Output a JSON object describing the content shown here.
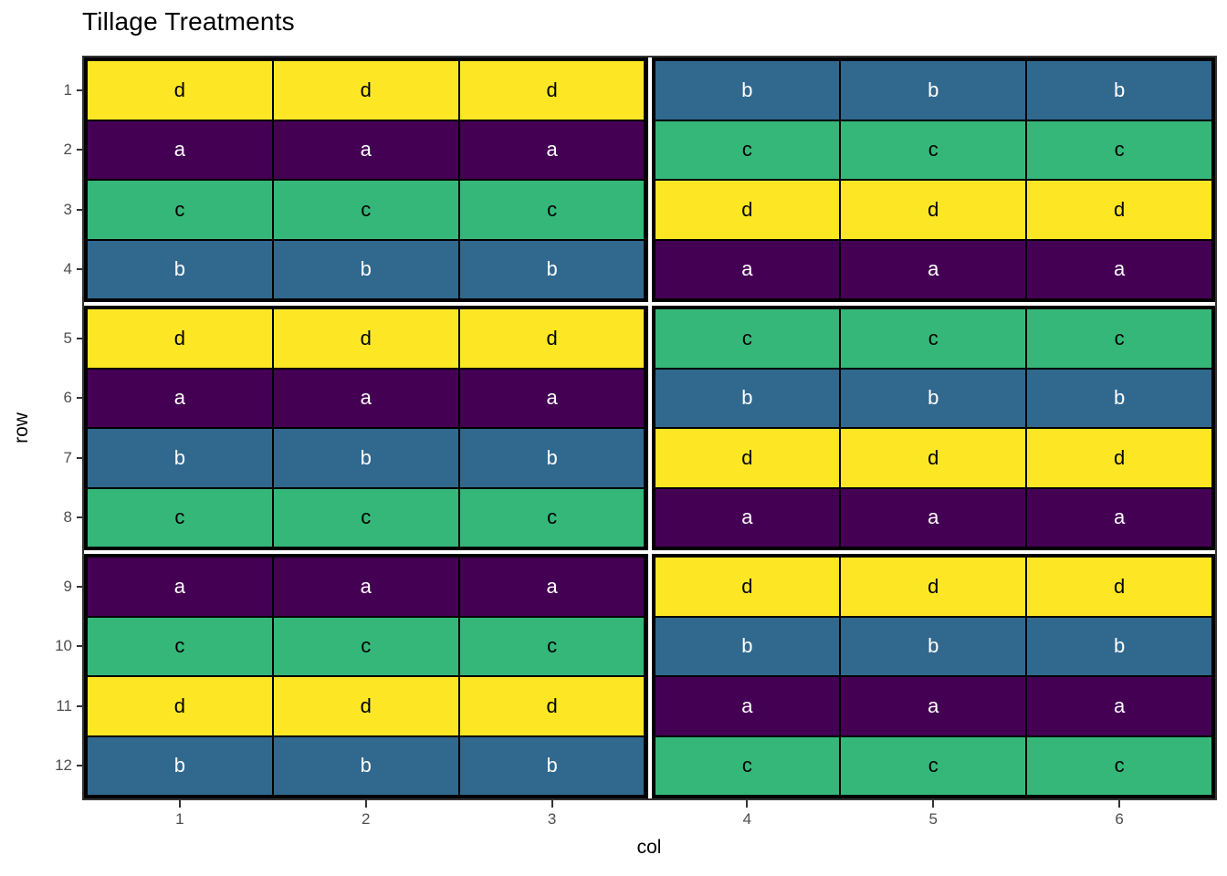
{
  "title": "Tillage Treatments",
  "axes": {
    "x_label": "col",
    "y_label": "row",
    "x_ticks": [
      "1",
      "2",
      "3",
      "4",
      "5",
      "6"
    ],
    "y_ticks": [
      "1",
      "2",
      "3",
      "4",
      "5",
      "6",
      "7",
      "8",
      "9",
      "10",
      "11",
      "12"
    ]
  },
  "palette": {
    "a": "#440154",
    "b": "#31688E",
    "c": "#35B779",
    "d": "#FDE725"
  },
  "text_colors": {
    "a": "#FFFFFF",
    "b": "#FFFFFF",
    "c": "#000000",
    "d": "#000000"
  },
  "panel": {
    "background": "#FFFFFF",
    "block_border_color": "#000000",
    "outer_border_color": "#333333",
    "tick_color": "#333333",
    "tick_label_color": "#4D4D4D"
  },
  "chart_data": {
    "type": "heatmap",
    "title": "Tillage Treatments",
    "xlabel": "col",
    "ylabel": "row",
    "x": [
      1,
      2,
      3,
      4,
      5,
      6
    ],
    "y": [
      1,
      2,
      3,
      4,
      5,
      6,
      7,
      8,
      9,
      10,
      11,
      12
    ],
    "legend": false,
    "treatments": [
      "a",
      "b",
      "c",
      "d"
    ],
    "grid": [
      [
        "d",
        "d",
        "d",
        "b",
        "b",
        "b"
      ],
      [
        "a",
        "a",
        "a",
        "c",
        "c",
        "c"
      ],
      [
        "c",
        "c",
        "c",
        "d",
        "d",
        "d"
      ],
      [
        "b",
        "b",
        "b",
        "a",
        "a",
        "a"
      ],
      [
        "d",
        "d",
        "d",
        "c",
        "c",
        "c"
      ],
      [
        "a",
        "a",
        "a",
        "b",
        "b",
        "b"
      ],
      [
        "b",
        "b",
        "b",
        "d",
        "d",
        "d"
      ],
      [
        "c",
        "c",
        "c",
        "a",
        "a",
        "a"
      ],
      [
        "a",
        "a",
        "a",
        "d",
        "d",
        "d"
      ],
      [
        "c",
        "c",
        "c",
        "b",
        "b",
        "b"
      ],
      [
        "d",
        "d",
        "d",
        "a",
        "a",
        "a"
      ],
      [
        "b",
        "b",
        "b",
        "c",
        "c",
        "c"
      ]
    ],
    "row_blocks": [
      [
        1,
        4
      ],
      [
        5,
        8
      ],
      [
        9,
        12
      ]
    ],
    "col_blocks": [
      [
        1,
        3
      ],
      [
        4,
        6
      ]
    ]
  }
}
